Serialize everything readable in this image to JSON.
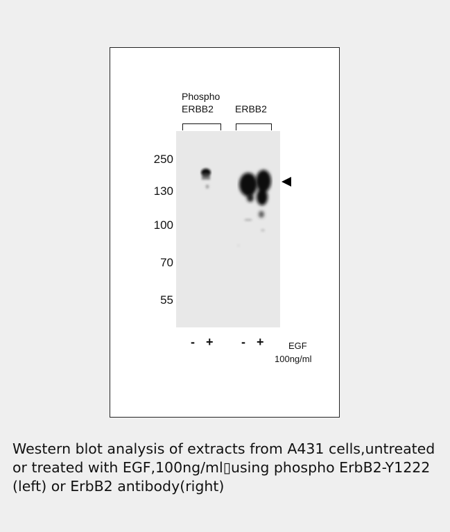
{
  "figure": {
    "group_labels": {
      "phospho_line1": "Phospho",
      "phospho_line2": "ERBB2",
      "total": "ERBB2"
    },
    "mw_markers": [
      "250",
      "130",
      "100",
      "70",
      "55"
    ],
    "lanes": [
      "-",
      "+",
      "-",
      "+"
    ],
    "treatment_label_line1": "EGF",
    "treatment_label_line2": "100ng/ml",
    "colors": {
      "band": "#0a0a0a",
      "membrane": "#e8e8e8",
      "page": "#efefef"
    },
    "icons": {
      "arrow": "left-pointing-triangle-arrow"
    }
  },
  "caption": " Western blot analysis of extracts from A431 cells,untreated or treated with EGF,100ng/ml▯using phospho ErbB2-Y1222 (left) or ErbB2 antibody(right)"
}
